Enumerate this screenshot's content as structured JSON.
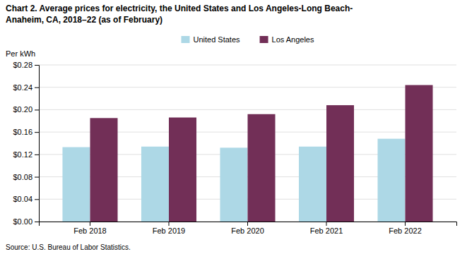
{
  "chart_data": {
    "type": "bar",
    "title": "Chart 2. Average prices for electricity, the United States and Los Angeles-Long Beach-\nAnaheim, CA, 2018–22 (as of February)",
    "y_label": "Per kWh",
    "categories": [
      "Feb 2018",
      "Feb 2019",
      "Feb 2020",
      "Feb 2021",
      "Feb 2022"
    ],
    "series": [
      {
        "name": "United States",
        "color": "#add8e6",
        "values": [
          0.133,
          0.134,
          0.132,
          0.134,
          0.148
        ]
      },
      {
        "name": "Los Angeles",
        "color": "#722f57",
        "values": [
          0.185,
          0.186,
          0.192,
          0.208,
          0.244
        ]
      }
    ],
    "ylim": [
      0,
      0.28
    ],
    "yticks": [
      {
        "value": 0.0,
        "label": "$0.00"
      },
      {
        "value": 0.04,
        "label": "$0.04"
      },
      {
        "value": 0.08,
        "label": "$0.08"
      },
      {
        "value": 0.12,
        "label": "$0.12"
      },
      {
        "value": 0.16,
        "label": "$0.16"
      },
      {
        "value": 0.2,
        "label": "$0.20"
      },
      {
        "value": 0.24,
        "label": "$0.24"
      },
      {
        "value": 0.28,
        "label": "$0.28"
      }
    ],
    "grid": true,
    "legend": "top",
    "source": "Source: U.S. Bureau of Labor Statistics."
  }
}
